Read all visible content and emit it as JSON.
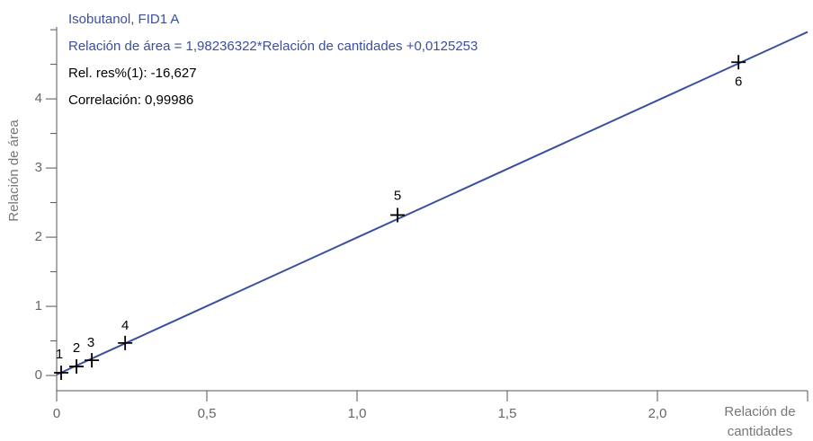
{
  "chart_data": {
    "type": "scatter",
    "annotations": [
      {
        "text": "Isobutanol, FID1 A",
        "color": "#3b4ea0"
      },
      {
        "text": "Relación de área = 1,98236322*Relación de cantidades +0,0125253",
        "color": "#3b4ea0"
      },
      {
        "text": "Rel. res%(1): -16,627",
        "color": "#000000"
      },
      {
        "text": "Correlación: 0,99986",
        "color": "#000000"
      }
    ],
    "x_label": [
      "Relación de",
      "cantidades"
    ],
    "y_label": "Relación de área",
    "x": [
      0.015,
      0.066,
      0.117,
      0.228,
      1.135,
      2.27
    ],
    "values": [
      0.04,
      0.13,
      0.22,
      0.47,
      2.32,
      4.53
    ],
    "point_labels": [
      "1",
      "2",
      "3",
      "4",
      "5",
      "6"
    ],
    "color": "#000000",
    "fit": {
      "slope": 1.98236322,
      "intercept": 0.0125253,
      "color": "#3b4ea0"
    },
    "xlim": [
      0,
      2.5
    ],
    "ylim": [
      -0.22,
      5.3
    ],
    "xticks": [
      0,
      {
        "value": 0.5,
        "label": "0,5"
      },
      {
        "value": 1,
        "label": "1,0"
      },
      {
        "value": 1.5,
        "label": "1,5"
      },
      {
        "value": 2,
        "label": "2,0"
      },
      2.5
    ],
    "yticks": [
      0,
      1,
      2,
      3,
      4
    ],
    "yminor": [
      0.5,
      1.5,
      2.5,
      3.5,
      4.5,
      5
    ]
  }
}
